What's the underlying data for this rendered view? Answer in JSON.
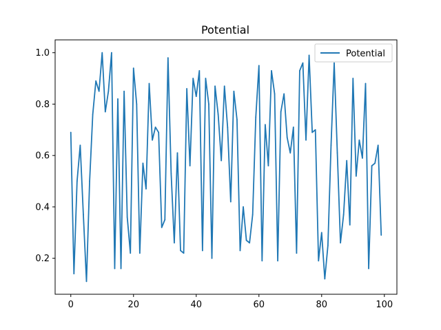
{
  "chart_data": {
    "type": "line",
    "title": "Potential",
    "xlabel": "",
    "ylabel": "",
    "xlim": [
      -5,
      104
    ],
    "ylim": [
      0.06,
      1.05
    ],
    "x_ticks": [
      0,
      20,
      40,
      60,
      80,
      100
    ],
    "x_tick_labels": [
      "0",
      "20",
      "40",
      "60",
      "80",
      "100"
    ],
    "y_ticks": [
      0.2,
      0.4,
      0.6,
      0.8,
      1.0
    ],
    "y_tick_labels": [
      "0.2",
      "0.4",
      "0.6",
      "0.8",
      "1.0"
    ],
    "grid": false,
    "legend_position": "top-right",
    "series": [
      {
        "name": "Potential",
        "color": "#1f77b4",
        "x": [
          0,
          1,
          2,
          3,
          4,
          5,
          6,
          7,
          8,
          9,
          10,
          11,
          12,
          13,
          14,
          15,
          16,
          17,
          18,
          19,
          20,
          21,
          22,
          23,
          24,
          25,
          26,
          27,
          28,
          29,
          30,
          31,
          32,
          33,
          34,
          35,
          36,
          37,
          38,
          39,
          40,
          41,
          42,
          43,
          44,
          45,
          46,
          47,
          48,
          49,
          50,
          51,
          52,
          53,
          54,
          55,
          56,
          57,
          58,
          59,
          60,
          61,
          62,
          63,
          64,
          65,
          66,
          67,
          68,
          69,
          70,
          71,
          72,
          73,
          74,
          75,
          76,
          77,
          78,
          79,
          80,
          81,
          82,
          83,
          84,
          85,
          86,
          87,
          88,
          89,
          90,
          91,
          92,
          93,
          94,
          95,
          96,
          97,
          98,
          99
        ],
        "values": [
          0.69,
          0.14,
          0.5,
          0.64,
          0.37,
          0.11,
          0.5,
          0.76,
          0.89,
          0.85,
          1.0,
          0.77,
          0.85,
          1.0,
          0.16,
          0.82,
          0.16,
          0.85,
          0.36,
          0.22,
          0.94,
          0.8,
          0.22,
          0.57,
          0.47,
          0.88,
          0.66,
          0.71,
          0.69,
          0.32,
          0.35,
          0.98,
          0.53,
          0.26,
          0.61,
          0.23,
          0.22,
          0.86,
          0.56,
          0.9,
          0.83,
          0.93,
          0.23,
          0.9,
          0.8,
          0.2,
          0.87,
          0.76,
          0.58,
          0.87,
          0.71,
          0.42,
          0.85,
          0.74,
          0.23,
          0.4,
          0.27,
          0.26,
          0.37,
          0.75,
          0.95,
          0.19,
          0.72,
          0.56,
          0.93,
          0.84,
          0.19,
          0.77,
          0.84,
          0.67,
          0.61,
          0.71,
          0.22,
          0.93,
          0.96,
          0.66,
          0.99,
          0.69,
          0.7,
          0.19,
          0.3,
          0.12,
          0.25,
          0.64,
          0.96,
          0.61,
          0.26,
          0.37,
          0.58,
          0.33,
          0.9,
          0.52,
          0.66,
          0.59,
          0.88,
          0.16,
          0.56,
          0.57,
          0.64,
          0.29
        ]
      }
    ]
  }
}
